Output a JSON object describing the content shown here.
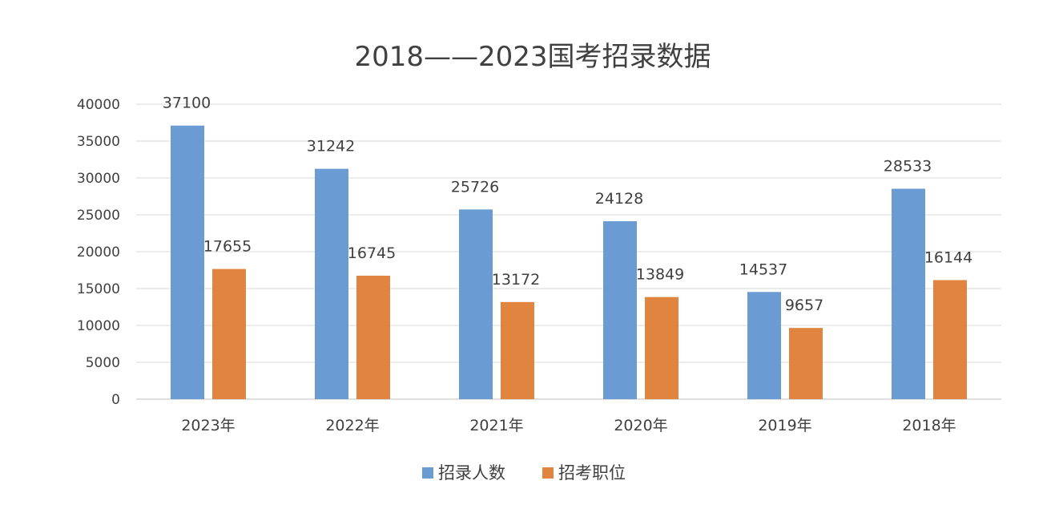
{
  "chart_data": {
    "type": "bar",
    "title": "2018——2023国考招录数据",
    "categories": [
      "2023年",
      "2022年",
      "2021年",
      "2020年",
      "2019年",
      "2018年"
    ],
    "series": [
      {
        "name": "招录人数",
        "values": [
          37100,
          31242,
          25726,
          24128,
          14537,
          28533
        ],
        "color": "#6a9bd2"
      },
      {
        "name": "招考职位",
        "values": [
          17655,
          16745,
          13172,
          13849,
          9657,
          16144
        ],
        "color": "#e0843f"
      }
    ],
    "yticks": [
      "0",
      "5000",
      "10000",
      "15000",
      "20000",
      "25000",
      "30000",
      "35000",
      "40000"
    ],
    "ylim": [
      0,
      40000
    ],
    "grid": true,
    "legend_position": "bottom"
  }
}
